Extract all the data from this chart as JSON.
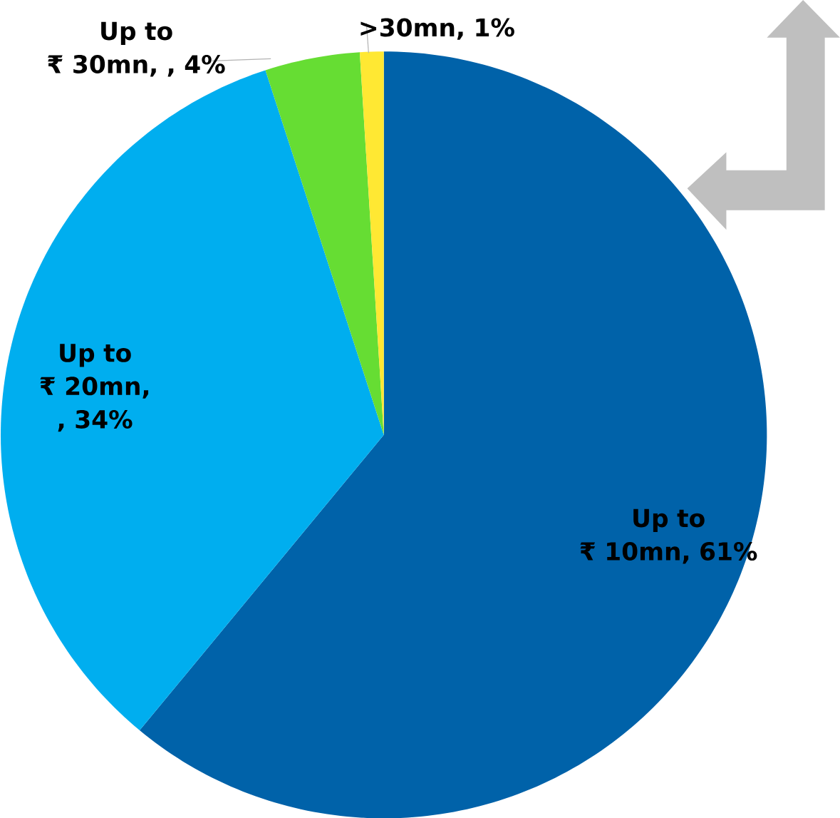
{
  "chart_data": {
    "type": "pie",
    "categories": [
      "Up to ₹ 10mn",
      "Up to ₹ 20mn",
      "Up to ₹ 30mn",
      ">30mn"
    ],
    "values": [
      61,
      34,
      4,
      1
    ],
    "value_labels": [
      ", 61%",
      ", , 34%",
      ", , 4%",
      ", 1%"
    ],
    "colors": [
      "#0062a9",
      "#00aeef",
      "#66dd33",
      "#ffe833"
    ]
  }
}
